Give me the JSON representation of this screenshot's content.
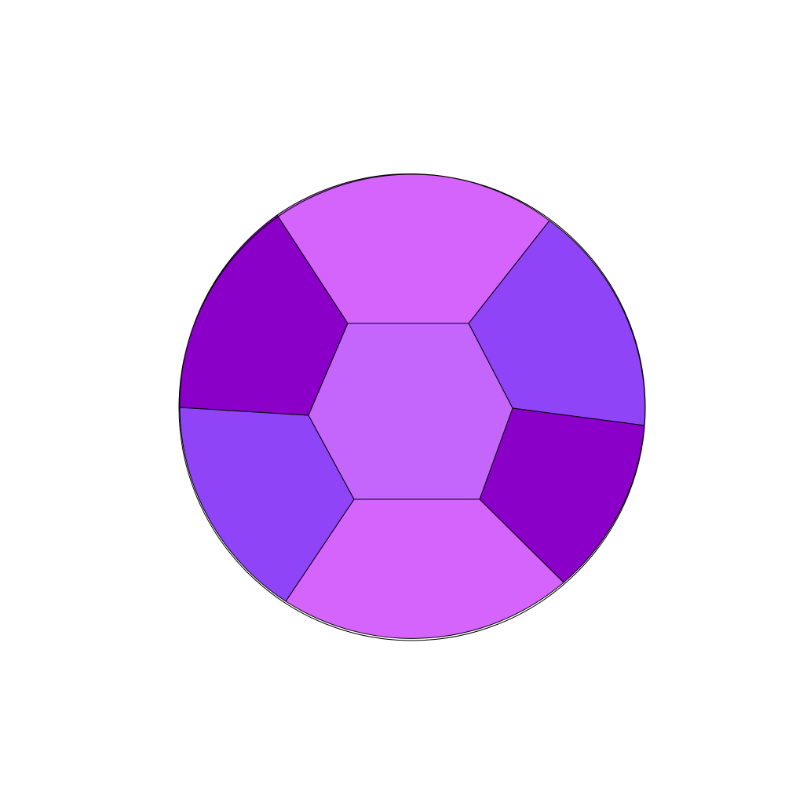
{
  "gem": {
    "shape": "circle",
    "outline_color": "#000000",
    "background_color": "#ffffff",
    "colors": {
      "table": "#c466fc",
      "top": "#d464fb",
      "upper_right": "#8f44f7",
      "lower_right": "#8a00c8",
      "bottom": "#d464fb",
      "lower_left": "#8f44f7",
      "upper_left": "#8a00c8"
    }
  }
}
